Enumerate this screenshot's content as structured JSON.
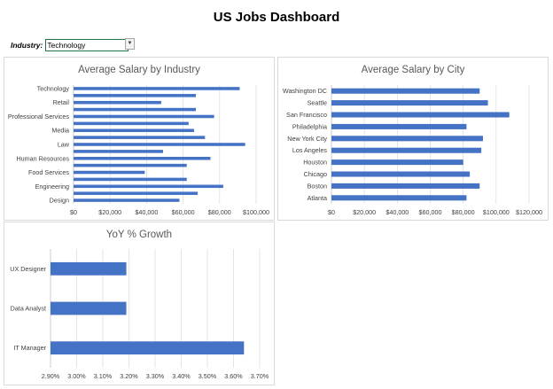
{
  "title": "US Jobs Dashboard",
  "filter": {
    "label": "Industry:",
    "value": "Technology"
  },
  "colors": {
    "bar": "#4472C4",
    "grid": "#d9d9d9"
  },
  "chart_data": [
    {
      "type": "bar",
      "orientation": "horizontal",
      "title": "Average Salary by Industry",
      "categories": [
        "Technology",
        "",
        "Retail",
        "",
        "Professional Services",
        "",
        "Media",
        "",
        "Law",
        "",
        "Human Resources",
        "",
        "Food Services",
        "",
        "Engineering",
        "",
        "Design"
      ],
      "values": [
        91000,
        67000,
        48000,
        67000,
        77000,
        63000,
        66000,
        72000,
        94000,
        49000,
        75000,
        62000,
        39000,
        62000,
        82000,
        68000,
        58000
      ],
      "xlim": [
        0,
        100000
      ],
      "xticks": [
        "$0",
        "$20,000",
        "$40,000",
        "$60,000",
        "$80,000",
        "$100,000"
      ],
      "xtick_values": [
        0,
        20000,
        40000,
        60000,
        80000,
        100000
      ],
      "grid": true
    },
    {
      "type": "bar",
      "orientation": "horizontal",
      "title": "Average Salary by City",
      "categories": [
        "Washington DC",
        "Seattle",
        "San Francisco",
        "Philadelphia",
        "New York City",
        "Los Angeles",
        "Houston",
        "Chicago",
        "Boston",
        "Atlanta"
      ],
      "values": [
        90000,
        95000,
        108000,
        82000,
        92000,
        91000,
        80000,
        84000,
        90000,
        82000
      ],
      "xlim": [
        0,
        120000
      ],
      "xticks": [
        "$0",
        "$20,000",
        "$40,000",
        "$60,000",
        "$80,000",
        "$100,000",
        "$120,000"
      ],
      "xtick_values": [
        0,
        20000,
        40000,
        60000,
        80000,
        100000,
        120000
      ],
      "grid": true
    },
    {
      "type": "bar",
      "orientation": "horizontal",
      "title": "YoY % Growth",
      "categories": [
        "UX Designer",
        "Data Analyst",
        "IT Manager"
      ],
      "values": [
        3.19,
        3.19,
        3.64
      ],
      "xlim": [
        2.9,
        3.7
      ],
      "xticks": [
        "2.90%",
        "3.00%",
        "3.10%",
        "3.20%",
        "3.30%",
        "3.40%",
        "3.50%",
        "3.60%",
        "3.70%"
      ],
      "xtick_values": [
        2.9,
        3.0,
        3.1,
        3.2,
        3.3,
        3.4,
        3.5,
        3.6,
        3.7
      ],
      "grid": true
    }
  ]
}
